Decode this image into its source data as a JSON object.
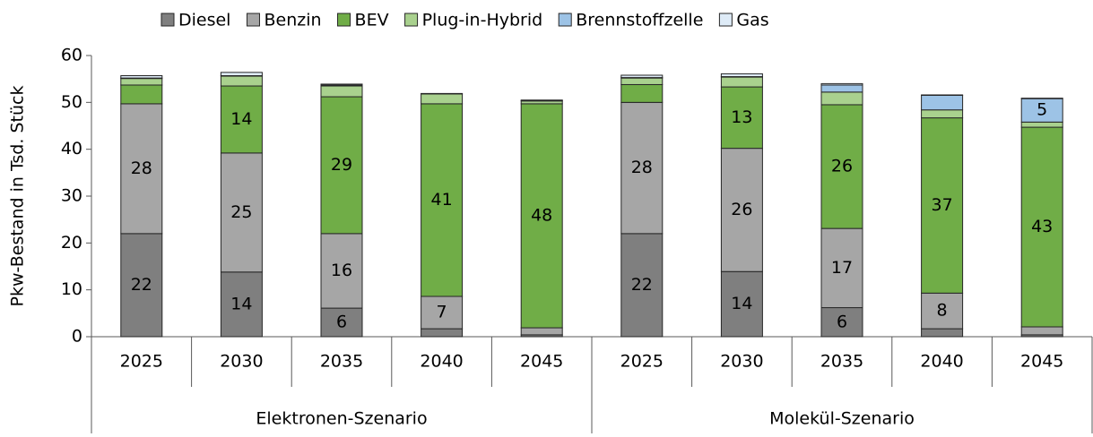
{
  "chart_data": {
    "type": "stacked_bar",
    "ylabel": "Pkw-Bestand in Tsd. Stück",
    "groups": [
      {
        "name": "Elektronen-Szenario",
        "categories": [
          "2025",
          "2030",
          "2035",
          "2040",
          "2045"
        ]
      },
      {
        "name": "Molekül-Szenario",
        "categories": [
          "2025",
          "2030",
          "2035",
          "2040",
          "2045"
        ]
      }
    ],
    "series": [
      {
        "name": "Diesel",
        "color": "#7f7f7f",
        "values": [
          22,
          13.8,
          6.1,
          1.7,
          0.4,
          22,
          13.9,
          6.2,
          1.7,
          0.4
        ],
        "value_labels": [
          "22",
          "14",
          "6",
          null,
          null,
          "22",
          "14",
          "6",
          null,
          null
        ]
      },
      {
        "name": "Benzin",
        "color": "#a6a6a6",
        "values": [
          27.7,
          25.4,
          15.9,
          6.9,
          1.5,
          28,
          26.3,
          16.9,
          7.6,
          1.7
        ],
        "value_labels": [
          "28",
          "25",
          "16",
          "7",
          null,
          "28",
          "26",
          "17",
          "8",
          null
        ]
      },
      {
        "name": "BEV",
        "color": "#70ad47",
        "values": [
          4.0,
          14.3,
          29.2,
          41.1,
          47.8,
          3.8,
          13.1,
          26.4,
          37.4,
          42.6
        ],
        "value_labels": [
          null,
          "14",
          "29",
          "41",
          "48",
          null,
          "13",
          "26",
          "37",
          "43"
        ]
      },
      {
        "name": "Plug-in-Hybrid",
        "color": "#a9d18e",
        "values": [
          1.4,
          2.1,
          2.3,
          2.1,
          0.6,
          1.4,
          2.1,
          2.7,
          1.7,
          1.1
        ],
        "value_labels": [
          null,
          null,
          null,
          null,
          null,
          null,
          null,
          null,
          null,
          null
        ]
      },
      {
        "name": "Brennstoffzelle",
        "color": "#9dc3e6",
        "values": [
          0.1,
          0.1,
          0.2,
          0,
          0.1,
          0.1,
          0.1,
          1.5,
          3.1,
          5.0
        ],
        "value_labels": [
          null,
          null,
          null,
          null,
          null,
          null,
          null,
          null,
          null,
          "5"
        ]
      },
      {
        "name": "Gas",
        "color": "#deebf7",
        "values": [
          0.5,
          0.7,
          0.2,
          0.1,
          0.1,
          0.5,
          0.6,
          0.3,
          0.1,
          0.1
        ],
        "value_labels": [
          null,
          null,
          null,
          null,
          null,
          null,
          null,
          null,
          null,
          null
        ]
      }
    ],
    "ylim": [
      0,
      60
    ],
    "yticks": [
      0,
      10,
      20,
      30,
      40,
      50,
      60
    ],
    "legend": "top"
  }
}
